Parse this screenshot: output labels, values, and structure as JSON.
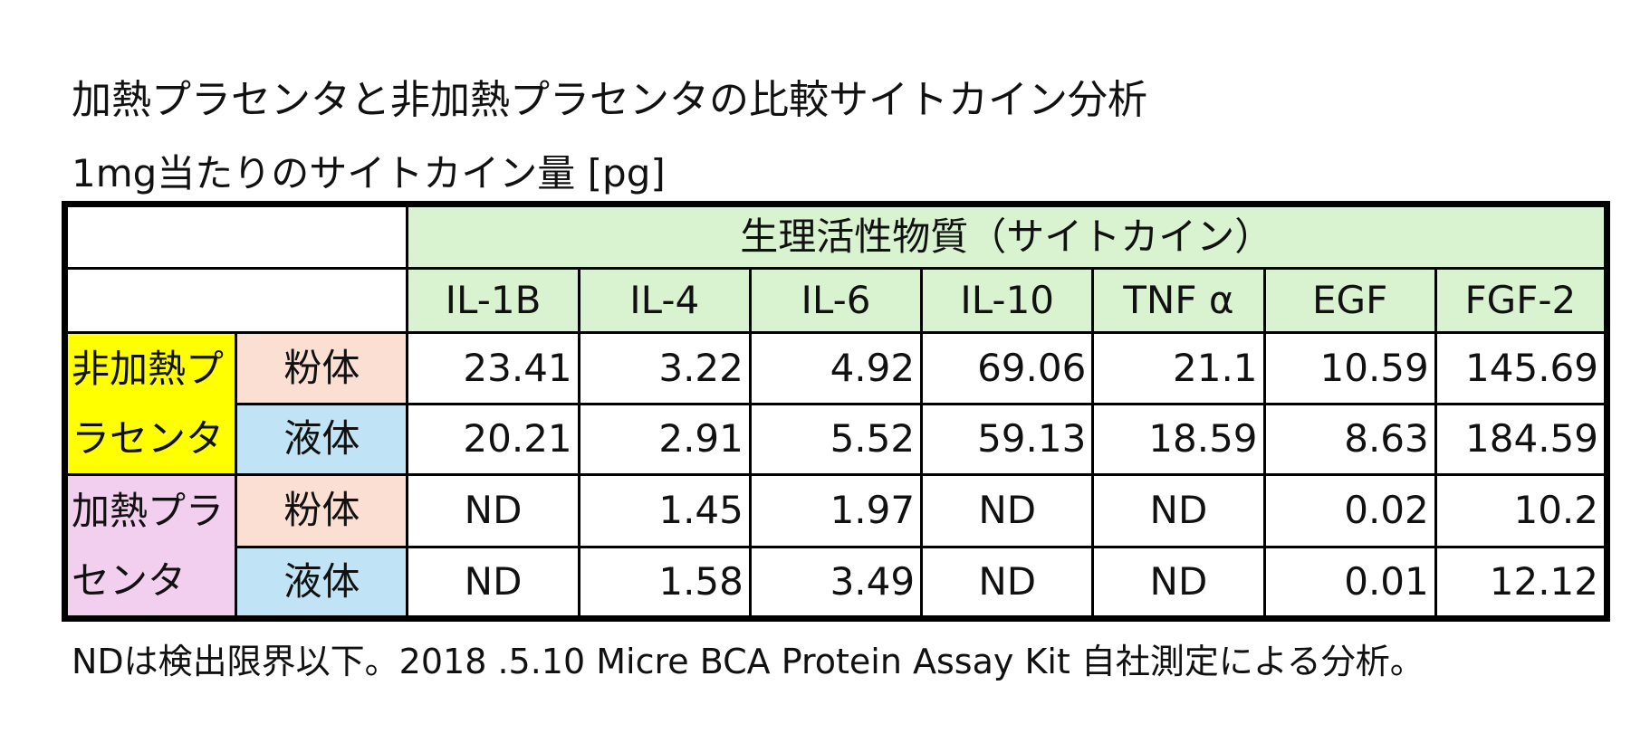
{
  "header": {
    "title": "加熱プラセンタと非加熱プラセンタの比較サイトカイン分析",
    "subtitle": "1mg当たりのサイトカイン量 [pg]"
  },
  "table": {
    "group_header": "生理活性物質（サイトカイン）",
    "columns": [
      "IL-1B",
      "IL-4",
      "IL-6",
      "IL-10",
      "TNF α",
      "EGF",
      "FGF-2"
    ],
    "groups": [
      {
        "label": "非加熱プラセンタ",
        "rows": [
          {
            "form": "粉体",
            "values": [
              23.41,
              3.22,
              4.92,
              69.06,
              21.1,
              10.59,
              145.69
            ]
          },
          {
            "form": "液体",
            "values": [
              20.21,
              2.91,
              5.52,
              59.13,
              18.59,
              8.63,
              184.59
            ]
          }
        ]
      },
      {
        "label": "加熱プラセンタ",
        "rows": [
          {
            "form": "粉体",
            "values": [
              "ND",
              1.45,
              1.97,
              "ND",
              "ND",
              0.02,
              10.2
            ]
          },
          {
            "form": "液体",
            "values": [
              "ND",
              1.58,
              3.49,
              "ND",
              "ND",
              0.01,
              12.12
            ]
          }
        ]
      }
    ]
  },
  "footnote": "NDは検出限界以下。2018 .5.10 Micre BCA Protein Assay Kit 自社測定による分析。"
}
